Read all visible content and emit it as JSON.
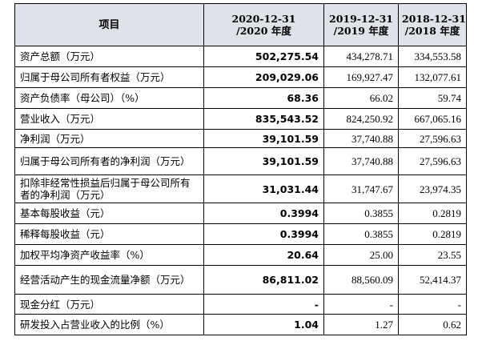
{
  "table": {
    "header": {
      "item": "项目",
      "col1_line1": "2020-12-31",
      "col1_line2": "/2020 年度",
      "col2_line1": "2019-12-31",
      "col2_line2": "/2019 年度",
      "col3_line1": "2018-12-31",
      "col3_line2": "/2018 年度"
    },
    "rows": [
      {
        "label": "资产总额（万元）",
        "v2020": "502,275.54",
        "v2019": "434,278.71",
        "v2018": "334,553.58"
      },
      {
        "label": "归属于母公司所有者权益（万元）",
        "v2020": "209,029.06",
        "v2019": "169,927.47",
        "v2018": "132,077.61"
      },
      {
        "label": "资产负债率（母公司）（%）",
        "v2020": "68.36",
        "v2019": "66.02",
        "v2018": "59.74"
      },
      {
        "label": "营业收入（万元）",
        "v2020": "835,543.52",
        "v2019": "824,250.92",
        "v2018": "667,065.16"
      },
      {
        "label": "净利润（万元）",
        "v2020": "39,101.59",
        "v2019": "37,740.88",
        "v2018": "27,596.63"
      },
      {
        "label": "归属于母公司所有者的净利润（万元）",
        "v2020": "39,101.59",
        "v2019": "37,740.88",
        "v2018": "27,596.63"
      },
      {
        "label": "扣除非经常性损益后归属于母公司所有者的净利润（万元）",
        "v2020": "31,031.44",
        "v2019": "31,747.67",
        "v2018": "23,974.35"
      },
      {
        "label": "基本每股收益（元）",
        "v2020": "0.3994",
        "v2019": "0.3855",
        "v2018": "0.2819"
      },
      {
        "label": "稀释每股收益（元）",
        "v2020": "0.3994",
        "v2019": "0.3855",
        "v2018": "0.2819"
      },
      {
        "label": "加权平均净资产收益率（%）",
        "v2020": "20.64",
        "v2019": "25.00",
        "v2018": "23.55"
      },
      {
        "label": "经营活动产生的现金流量净额（万元）",
        "v2020": "86,811.02",
        "v2019": "88,560.09",
        "v2018": "52,414.37"
      },
      {
        "label": "现金分红（万元）",
        "v2020": "-",
        "v2019": "-",
        "v2018": "-"
      },
      {
        "label": "研发投入占营业收入的比例（%）",
        "v2020": "1.04",
        "v2019": "1.27",
        "v2018": "0.62"
      }
    ]
  },
  "colors": {
    "header_background": "#dfe2e8",
    "border": "#000000",
    "text": "#000000"
  }
}
